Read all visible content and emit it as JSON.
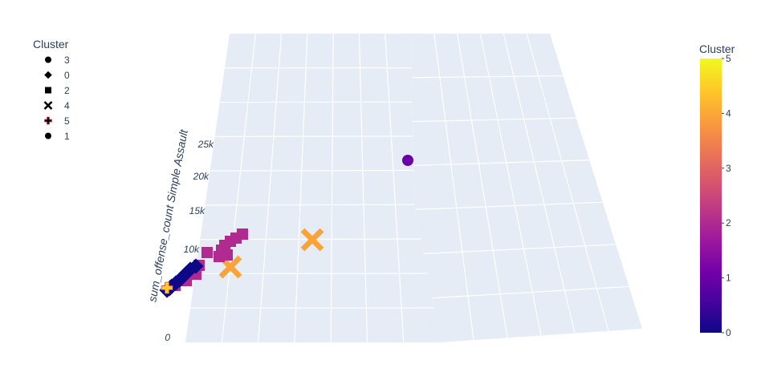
{
  "chart_data": {
    "type": "scatter",
    "projection": "3d",
    "axes": {
      "z": {
        "title": "sum_offense_count Simple Assault",
        "ticks": [
          {
            "value": 0,
            "label": "0"
          },
          {
            "value": 10000,
            "label": "10k"
          },
          {
            "value": 15000,
            "label": "15k"
          },
          {
            "value": 20000,
            "label": "20k"
          },
          {
            "value": 25000,
            "label": "25k"
          }
        ],
        "range": [
          0,
          28000
        ]
      }
    },
    "legend": {
      "title": "Cluster",
      "placement": "top-left",
      "entries": [
        {
          "label": "3",
          "symbol": "circle"
        },
        {
          "label": "0",
          "symbol": "diamond"
        },
        {
          "label": "2",
          "symbol": "square"
        },
        {
          "label": "4",
          "symbol": "x"
        },
        {
          "label": "5",
          "symbol": "cross"
        },
        {
          "label": "1",
          "symbol": "circle"
        }
      ]
    },
    "colorbar": {
      "title": "Cluster",
      "placement": "right",
      "range": [
        0,
        5
      ],
      "ticks": [
        "0",
        "1",
        "2",
        "3",
        "4",
        "5"
      ],
      "colorscale": [
        "#0d0887",
        "#46039f",
        "#7201a8",
        "#9c179e",
        "#bd3786",
        "#d8576b",
        "#ed7953",
        "#fb9f3a",
        "#fdca26",
        "#f0f921"
      ]
    },
    "points": [
      {
        "cluster": 1,
        "symbol": "circle",
        "z": 22800,
        "color": "#6a00a8"
      },
      {
        "cluster": 4,
        "symbol": "x",
        "z": 11500,
        "color": "#fba238"
      },
      {
        "cluster": 4,
        "symbol": "x",
        "z": 7000,
        "color": "#fba238"
      },
      {
        "cluster": 2,
        "symbol": "square",
        "z": 12200,
        "color": "#b12a90"
      },
      {
        "cluster": 2,
        "symbol": "square",
        "z": 11800,
        "color": "#b12a90"
      },
      {
        "cluster": 2,
        "symbol": "square",
        "z": 11200,
        "color": "#b12a90"
      },
      {
        "cluster": 2,
        "symbol": "square",
        "z": 10800,
        "color": "#b12a90"
      },
      {
        "cluster": 2,
        "symbol": "square",
        "z": 10200,
        "color": "#b12a90"
      },
      {
        "cluster": 2,
        "symbol": "square",
        "z": 9600,
        "color": "#b12a90"
      },
      {
        "cluster": 2,
        "symbol": "square",
        "z": 9200,
        "color": "#b12a90"
      },
      {
        "cluster": 2,
        "symbol": "square",
        "z": 9800,
        "color": "#b12a90"
      },
      {
        "cluster": 2,
        "symbol": "square",
        "z": 7600,
        "color": "#b12a90"
      },
      {
        "cluster": 2,
        "symbol": "square",
        "z": 6200,
        "color": "#b12a90"
      },
      {
        "cluster": 2,
        "symbol": "square",
        "z": 5000,
        "color": "#b12a90"
      },
      {
        "cluster": 2,
        "symbol": "square",
        "z": 3800,
        "color": "#b12a90"
      },
      {
        "cluster": 0,
        "symbol": "diamond",
        "z": 7800,
        "color": "#0d0887"
      },
      {
        "cluster": 0,
        "symbol": "diamond",
        "z": 7300,
        "color": "#0d0887"
      },
      {
        "cluster": 0,
        "symbol": "diamond",
        "z": 6600,
        "color": "#0d0887"
      },
      {
        "cluster": 0,
        "symbol": "diamond",
        "z": 5800,
        "color": "#0d0887"
      },
      {
        "cluster": 0,
        "symbol": "diamond",
        "z": 5000,
        "color": "#0d0887"
      },
      {
        "cluster": 0,
        "symbol": "diamond",
        "z": 4200,
        "color": "#0d0887"
      },
      {
        "cluster": 0,
        "symbol": "diamond",
        "z": 3300,
        "color": "#0d0887"
      },
      {
        "cluster": 0,
        "symbol": "diamond",
        "z": 2700,
        "color": "#0d0887"
      },
      {
        "cluster": 0,
        "symbol": "diamond",
        "z": 2000,
        "color": "#0d0887"
      },
      {
        "cluster": 3,
        "symbol": "circle",
        "z": 1600,
        "color": "#0d0887"
      },
      {
        "cluster": 3,
        "symbol": "circle",
        "z": 1200,
        "color": "#0d0887"
      },
      {
        "cluster": 5,
        "symbol": "cross",
        "z": 1500,
        "color": "#fdca26"
      }
    ]
  }
}
